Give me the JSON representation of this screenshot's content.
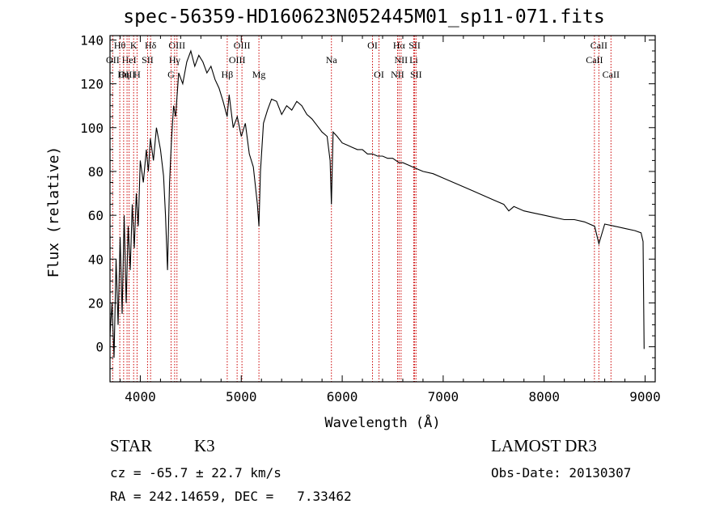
{
  "title": "spec-56359-HD160623N052445M01_sp11-071.fits",
  "info": {
    "class": "STAR",
    "subclass": "K3",
    "survey": "LAMOST DR3",
    "cz": "cz = -65.7 ± 22.7 km/s",
    "obsdate": "Obs-Date: 20130307",
    "radec": "RA = 242.14659, DEC =   7.33462"
  },
  "chart_data": {
    "type": "line",
    "title": "spec-56359-HD160623N052445M01_sp11-071.fits",
    "xlabel": "Wavelength (Å)",
    "ylabel": "Flux (relative)",
    "xlim": [
      3700,
      9100
    ],
    "ylim": [
      -16,
      142
    ],
    "xticks": [
      4000,
      5000,
      6000,
      7000,
      8000,
      9000
    ],
    "yticks": [
      0,
      20,
      40,
      60,
      80,
      100,
      120,
      140
    ],
    "line_color": "#000000",
    "marker_color": "#cc0000",
    "series": [
      {
        "x": [
          3700,
          3720,
          3740,
          3760,
          3780,
          3800,
          3820,
          3840,
          3860,
          3880,
          3900,
          3920,
          3940,
          3960,
          3980,
          4000,
          4030,
          4060,
          4080,
          4100,
          4130,
          4160,
          4200,
          4230,
          4250,
          4270,
          4290,
          4310,
          4330,
          4350,
          4380,
          4420,
          4460,
          4500,
          4540,
          4580,
          4620,
          4660,
          4700,
          4740,
          4780,
          4820,
          4860,
          4880,
          4920,
          4960,
          5000,
          5040,
          5080,
          5120,
          5160,
          5175,
          5190,
          5220,
          5260,
          5300,
          5350,
          5400,
          5450,
          5500,
          5550,
          5600,
          5650,
          5700,
          5750,
          5800,
          5850,
          5880,
          5893,
          5910,
          5950,
          6000,
          6050,
          6100,
          6150,
          6200,
          6250,
          6300,
          6350,
          6400,
          6450,
          6500,
          6563,
          6600,
          6650,
          6700,
          6750,
          6800,
          6900,
          7000,
          7100,
          7200,
          7300,
          7400,
          7500,
          7600,
          7650,
          7700,
          7800,
          7900,
          8000,
          8100,
          8200,
          8300,
          8400,
          8500,
          8542,
          8600,
          8700,
          8800,
          8900,
          8960,
          8980,
          8990
        ],
        "y": [
          5,
          20,
          -5,
          40,
          10,
          50,
          15,
          60,
          20,
          55,
          35,
          65,
          45,
          70,
          55,
          85,
          75,
          90,
          80,
          95,
          85,
          100,
          90,
          78,
          60,
          35,
          75,
          95,
          110,
          105,
          125,
          120,
          130,
          135,
          128,
          133,
          130,
          125,
          128,
          122,
          118,
          112,
          105,
          115,
          100,
          105,
          96,
          102,
          88,
          82,
          65,
          55,
          80,
          102,
          108,
          113,
          112,
          106,
          110,
          108,
          112,
          110,
          106,
          104,
          101,
          98,
          96,
          85,
          65,
          98,
          96,
          93,
          92,
          91,
          90,
          90,
          88,
          88,
          87,
          87,
          86,
          86,
          84,
          84,
          83,
          82,
          81,
          80,
          79,
          77,
          75,
          73,
          71,
          69,
          67,
          65,
          62,
          64,
          62,
          61,
          60,
          59,
          58,
          58,
          57,
          55,
          47,
          56,
          55,
          54,
          53,
          52,
          48,
          -1
        ]
      }
    ],
    "line_markers": [
      {
        "label": "Hθ",
        "wl": 3797,
        "row": 0
      },
      {
        "label": "K",
        "wl": 3934,
        "row": 0
      },
      {
        "label": "Hδ",
        "wl": 4102,
        "row": 0
      },
      {
        "label": "OIII",
        "wl": 4363,
        "row": 0
      },
      {
        "label": "OIII",
        "wl": 5007,
        "row": 0
      },
      {
        "label": "OI",
        "wl": 6300,
        "row": 0
      },
      {
        "label": "Hα",
        "wl": 6563,
        "row": 0
      },
      {
        "label": "SII",
        "wl": 6717,
        "row": 0
      },
      {
        "label": "CaII",
        "wl": 8542,
        "row": 0
      },
      {
        "label": "OII",
        "wl": 3727,
        "row": 1
      },
      {
        "label": "HeI",
        "wl": 3889,
        "row": 1
      },
      {
        "label": "SII",
        "wl": 4072,
        "row": 1
      },
      {
        "label": "Hγ",
        "wl": 4340,
        "row": 1
      },
      {
        "label": "OIII",
        "wl": 4959,
        "row": 1
      },
      {
        "label": "Na",
        "wl": 5893,
        "row": 1
      },
      {
        "label": "NII",
        "wl": 6583,
        "row": 1
      },
      {
        "label": "Li",
        "wl": 6708,
        "row": 1
      },
      {
        "label": "CaII",
        "wl": 8498,
        "row": 1
      },
      {
        "label": "OIII",
        "wl": 3869,
        "row": 2
      },
      {
        "label": "Hη",
        "wl": 3835,
        "row": 2
      },
      {
        "label": "H",
        "wl": 3968,
        "row": 2
      },
      {
        "label": "G",
        "wl": 4305,
        "row": 2
      },
      {
        "label": "Hβ",
        "wl": 4861,
        "row": 2
      },
      {
        "label": "Mg",
        "wl": 5175,
        "row": 2
      },
      {
        "label": "OI",
        "wl": 6364,
        "row": 2
      },
      {
        "label": "NII",
        "wl": 6548,
        "row": 2
      },
      {
        "label": "SII",
        "wl": 6731,
        "row": 2
      },
      {
        "label": "CaII",
        "wl": 8662,
        "row": 2
      }
    ]
  }
}
